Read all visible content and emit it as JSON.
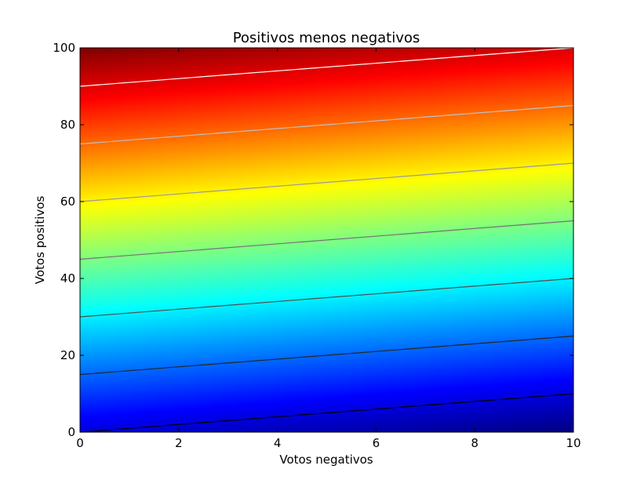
{
  "chart_data": {
    "type": "heatmap",
    "title": "Positivos menos negativos",
    "xlabel": "Votos negativos",
    "ylabel": "Votos positivos",
    "xlim": [
      0,
      10
    ],
    "ylim": [
      0,
      100
    ],
    "x_ticks": [
      "0",
      "2",
      "4",
      "6",
      "8",
      "10"
    ],
    "y_ticks": [
      "0",
      "20",
      "40",
      "60",
      "80",
      "100"
    ],
    "colormap": "jet",
    "function": "positivos - negativos",
    "color_range": [
      -10,
      100
    ],
    "contour_levels": [
      0,
      15,
      30,
      45,
      60,
      75,
      90
    ],
    "contour_colors": [
      "#000000",
      "#262626",
      "#4d4d4d",
      "#737373",
      "#999999",
      "#c0c0c0",
      "#ffffff"
    ],
    "grid": false,
    "legend": false
  }
}
